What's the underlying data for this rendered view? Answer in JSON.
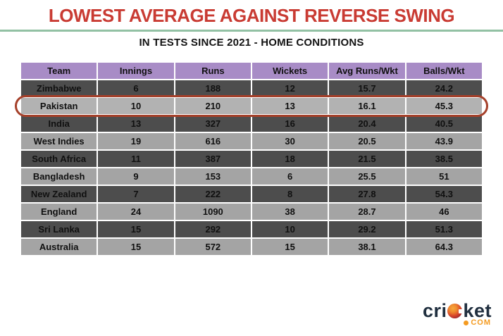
{
  "title": "LOWEST AVERAGE AGAINST REVERSE SWING",
  "subtitle": "IN TESTS SINCE 2021 - HOME CONDITIONS",
  "colors": {
    "title_red": "#C93B33",
    "divider_green": "#92C1A4",
    "header_purple": "#A88CC6",
    "row_dark": "#4D4D4D",
    "row_light": "#A4A4A4",
    "row_highlight": "#B2B2B2",
    "ring_red": "#A5402A",
    "logo_navy": "#202F3F",
    "logo_orange": "#F49B21"
  },
  "chart_data": {
    "type": "table",
    "title": "LOWEST AVERAGE AGAINST REVERSE SWING",
    "subtitle": "IN TESTS SINCE 2021 - HOME CONDITIONS",
    "columns": [
      "Team",
      "Innings",
      "Runs",
      "Wickets",
      "Avg Runs/Wkt",
      "Balls/Wkt"
    ],
    "rows": [
      [
        "Zimbabwe",
        6,
        188,
        12,
        15.7,
        24.2
      ],
      [
        "Pakistan",
        10,
        210,
        13,
        16.1,
        45.3
      ],
      [
        "India",
        13,
        327,
        16,
        20.4,
        40.5
      ],
      [
        "West Indies",
        19,
        616,
        30,
        20.5,
        43.9
      ],
      [
        "South Africa",
        11,
        387,
        18,
        21.5,
        38.5
      ],
      [
        "Bangladesh",
        9,
        153,
        6,
        25.5,
        51
      ],
      [
        "New Zealand",
        7,
        222,
        8,
        27.8,
        54.3
      ],
      [
        "England",
        24,
        1090,
        38,
        28.7,
        46
      ],
      [
        "Sri Lanka",
        15,
        292,
        10,
        29.2,
        51.3
      ],
      [
        "Australia",
        15,
        572,
        15,
        38.1,
        64.3
      ]
    ],
    "highlighted_row": "Pakistan",
    "legend_position": "none",
    "grid": "white separators between cells, alternating dark/light gray rows, purple header"
  },
  "logo": {
    "text_pre": "cri",
    "text_post": "ket",
    "tld": "COM"
  }
}
